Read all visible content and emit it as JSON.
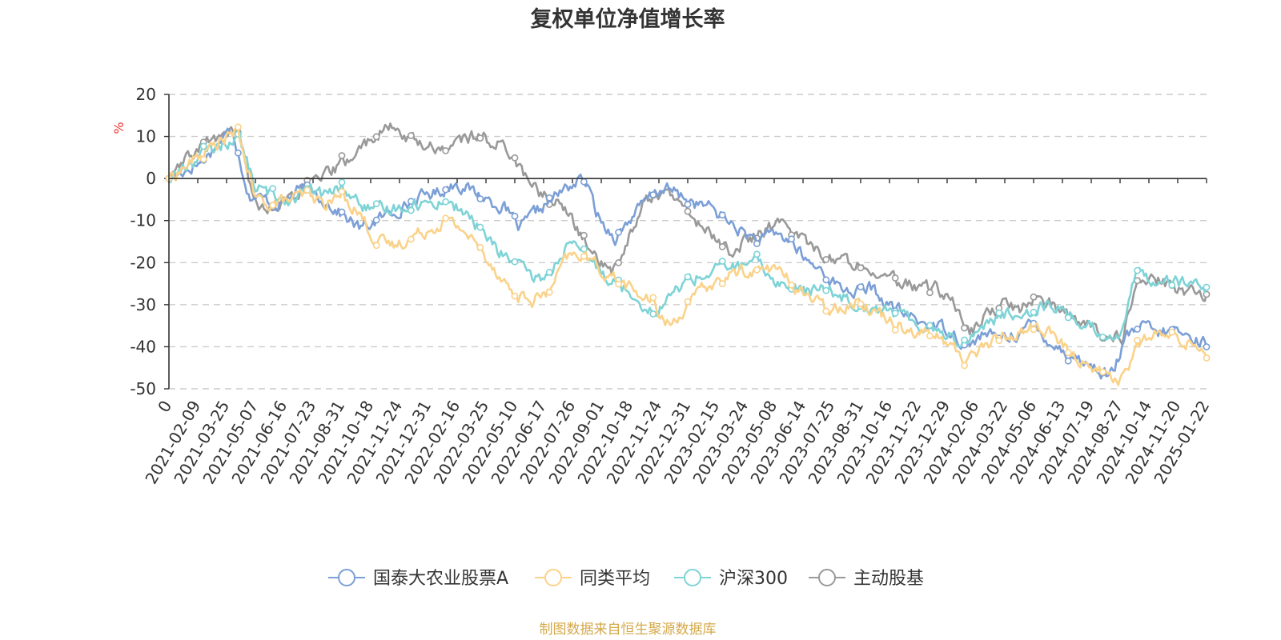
{
  "chart_data": {
    "type": "line",
    "title": "复权单位净值增长率",
    "ylabel": "%",
    "ylim": [
      -50,
      20
    ],
    "yticks": [
      20,
      10,
      0,
      -10,
      -20,
      -30,
      -40,
      -50
    ],
    "x_labels": [
      "0",
      "2021-02-09",
      "2021-03-25",
      "2021-05-07",
      "2021-06-16",
      "2021-07-23",
      "2021-08-31",
      "2021-10-18",
      "2021-11-24",
      "2021-12-31",
      "2022-02-16",
      "2022-03-25",
      "2022-05-10",
      "2022-06-17",
      "2022-07-26",
      "2022-09-01",
      "2022-10-18",
      "2022-11-24",
      "2022-12-31",
      "2023-02-15",
      "2023-03-24",
      "2023-05-08",
      "2023-06-14",
      "2023-07-25",
      "2023-08-31",
      "2023-10-16",
      "2023-11-22",
      "2023-12-29",
      "2024-02-06",
      "2024-03-22",
      "2024-05-06",
      "2024-06-13",
      "2024-07-19",
      "2024-08-27",
      "2024-10-14",
      "2024-11-20",
      "2025-01-22"
    ],
    "series": [
      {
        "name": "国泰大农业股票A",
        "color": "#7b9fd6",
        "values": [
          0,
          2,
          4,
          8,
          12,
          -4,
          -5,
          -6,
          -3,
          -3,
          -6,
          -9,
          -12,
          -10,
          -8,
          -6,
          -4,
          -3,
          -1,
          -3,
          -5,
          -7,
          -12,
          -8,
          -5,
          -2,
          0,
          -10,
          -14,
          -9,
          -5,
          -2,
          -4,
          -6,
          -7,
          -10,
          -13,
          -15,
          -13,
          -15,
          -20,
          -22,
          -26,
          -27,
          -26,
          -30,
          -32,
          -34,
          -35,
          -36,
          -40,
          -37,
          -38,
          -37,
          -35,
          -38,
          -41,
          -43,
          -45,
          -47,
          -38,
          -35,
          -37,
          -36,
          -38,
          -39
        ]
      },
      {
        "name": "同类平均",
        "color": "#fad28a",
        "values": [
          0,
          3,
          6,
          9,
          11,
          -5,
          -6,
          -5,
          -4,
          -6,
          -4,
          -8,
          -15,
          -16,
          -14,
          -12,
          -10,
          -12,
          -17,
          -22,
          -28,
          -29,
          -27,
          -19,
          -18,
          -22,
          -24,
          -27,
          -30,
          -35,
          -30,
          -26,
          -24,
          -22,
          -22,
          -21,
          -25,
          -28,
          -31,
          -30,
          -29,
          -32,
          -34,
          -36,
          -37,
          -39,
          -43,
          -40,
          -38,
          -37,
          -35,
          -37,
          -41,
          -44,
          -46,
          -48,
          -40,
          -37,
          -38,
          -39,
          -41
        ]
      },
      {
        "name": "沪深300",
        "color": "#7ed3d6",
        "values": [
          0,
          3,
          6,
          8,
          10,
          -2,
          -4,
          -5,
          -3,
          -4,
          -2,
          -6,
          -8,
          -7,
          -6,
          -6,
          -5,
          -8,
          -12,
          -17,
          -20,
          -24,
          -23,
          -16,
          -18,
          -22,
          -25,
          -28,
          -32,
          -28,
          -24,
          -23,
          -21,
          -21,
          -20,
          -24,
          -26,
          -27,
          -26,
          -28,
          -30,
          -31,
          -32,
          -34,
          -35,
          -37,
          -39,
          -35,
          -33,
          -32,
          -31,
          -30,
          -32,
          -35,
          -37,
          -37,
          -22,
          -24,
          -24,
          -25,
          -27
        ]
      },
      {
        "name": "主动股基",
        "color": "#999999",
        "values": [
          0,
          4,
          8,
          10,
          12,
          -6,
          -7,
          -5,
          -2,
          0,
          3,
          6,
          10,
          12,
          10,
          8,
          7,
          9,
          10,
          9,
          7,
          0,
          -4,
          -6,
          -12,
          -18,
          -23,
          -14,
          -5,
          -3,
          -6,
          -10,
          -14,
          -17,
          -15,
          -12,
          -11,
          -13,
          -17,
          -19,
          -20,
          -20,
          -23,
          -25,
          -26,
          -26,
          -28,
          -37,
          -33,
          -30,
          -31,
          -28,
          -30,
          -33,
          -35,
          -37,
          -38,
          -25,
          -24,
          -26,
          -27,
          -28
        ]
      }
    ]
  },
  "legend": {
    "items": [
      {
        "label": "国泰大农业股票A",
        "color": "#7b9fd6"
      },
      {
        "label": "同类平均",
        "color": "#fad28a"
      },
      {
        "label": "沪深300",
        "color": "#7ed3d6"
      },
      {
        "label": "主动股基",
        "color": "#999999"
      }
    ]
  },
  "source_text": "制图数据来自恒生聚源数据库",
  "colors": {
    "ylabel": "#ee3333",
    "source": "#d4a94a",
    "axis": "#333333",
    "grid": "#cccccc"
  }
}
